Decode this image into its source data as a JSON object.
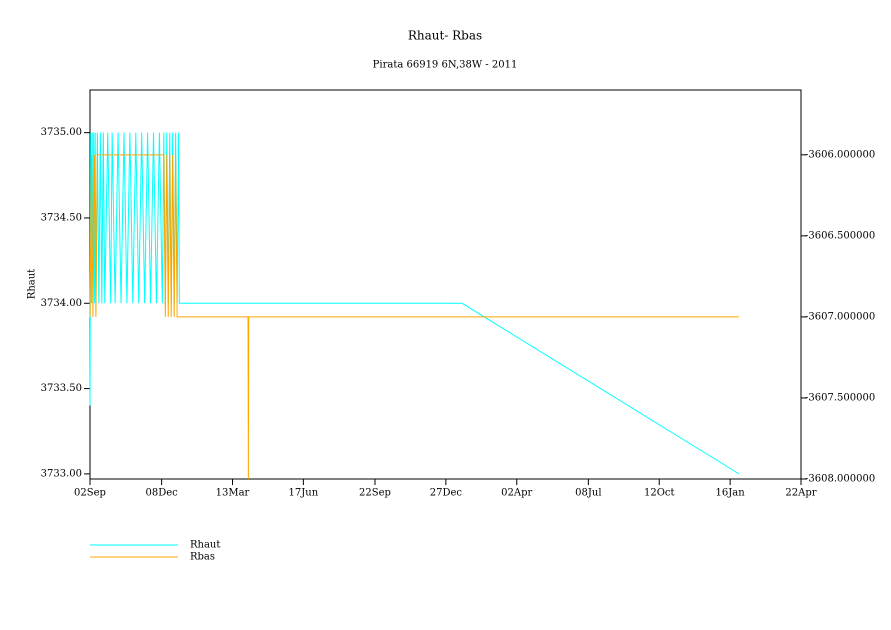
{
  "chart_data": {
    "type": "line",
    "title": "Rhaut-  Rbas",
    "subtitle": "Pirata 66919 6N,38W - 2011",
    "ylabel": "Rhaut",
    "xlim": [
      0,
      963
    ],
    "xticks": [
      {
        "value": 0,
        "label": "02Sep"
      },
      {
        "value": 97,
        "label": "08Dec"
      },
      {
        "value": 193,
        "label": "13Mar"
      },
      {
        "value": 289,
        "label": "17Jun"
      },
      {
        "value": 386,
        "label": "22Sep"
      },
      {
        "value": 482,
        "label": "27Dec"
      },
      {
        "value": 578,
        "label": "02Apr"
      },
      {
        "value": 675,
        "label": "08Jul"
      },
      {
        "value": 771,
        "label": "12Oct"
      },
      {
        "value": 867,
        "label": "16Jan"
      },
      {
        "value": 963,
        "label": "22Apr"
      }
    ],
    "ylim": [
      3732.97,
      3735.25
    ],
    "yticks": [
      {
        "value": 3733,
        "label": "3733.00"
      },
      {
        "value": 3733.5,
        "label": "3733.50"
      },
      {
        "value": 3734,
        "label": "3734.00"
      },
      {
        "value": 3734.5,
        "label": "3734.50"
      },
      {
        "value": 3735,
        "label": "3735.00"
      }
    ],
    "y2lim": [
      -3608,
      -3605.6
    ],
    "y2ticks": [
      {
        "value": -3608,
        "label": "-3608.000000"
      },
      {
        "value": -3607.5,
        "label": "-3607.500000"
      },
      {
        "value": -3607,
        "label": "-3607.000000"
      },
      {
        "value": -3606.5,
        "label": "-3606.500000"
      },
      {
        "value": -3606,
        "label": "-3606.000000"
      }
    ],
    "series": [
      {
        "name": "Rhaut",
        "color": "#00ffff",
        "x": [
          0,
          1,
          2,
          3,
          4,
          5,
          6,
          7,
          8,
          10,
          12,
          14,
          16,
          18,
          20,
          24,
          28,
          30,
          34,
          38,
          42,
          46,
          50,
          54,
          58,
          62,
          66,
          70,
          74,
          78,
          82,
          86,
          90,
          94,
          98,
          100,
          102,
          104,
          106,
          108,
          110,
          112,
          114,
          116,
          118,
          120,
          121,
          504,
          879
        ],
        "values": [
          3733.4,
          3735,
          3734,
          3735,
          3734,
          3735,
          3734,
          3735,
          3734,
          3735,
          3734,
          3735,
          3734,
          3735,
          3734,
          3735,
          3734,
          3735,
          3734,
          3735,
          3734,
          3735,
          3734,
          3735,
          3734,
          3735,
          3734,
          3735,
          3734,
          3735,
          3734,
          3735,
          3734,
          3735,
          3734,
          3735,
          3734,
          3735,
          3734,
          3735,
          3734,
          3735,
          3734,
          3735,
          3734,
          3735,
          3734,
          3734,
          3733
        ]
      },
      {
        "name": "Rbas",
        "color": "#ffa500",
        "axis": "y2",
        "x": [
          0,
          2,
          4,
          6,
          8,
          10,
          12,
          100,
          102,
          104,
          106,
          108,
          110,
          112,
          114,
          116,
          118,
          120,
          214,
          214.5,
          215,
          879
        ],
        "values": [
          -3607,
          -3606,
          -3607,
          -3606,
          -3607,
          -3606,
          -3606,
          -3606,
          -3607,
          -3606,
          -3607,
          -3606,
          -3607,
          -3606,
          -3607,
          -3606,
          -3607,
          -3607,
          -3607,
          -3608,
          -3607,
          -3607
        ]
      }
    ]
  }
}
